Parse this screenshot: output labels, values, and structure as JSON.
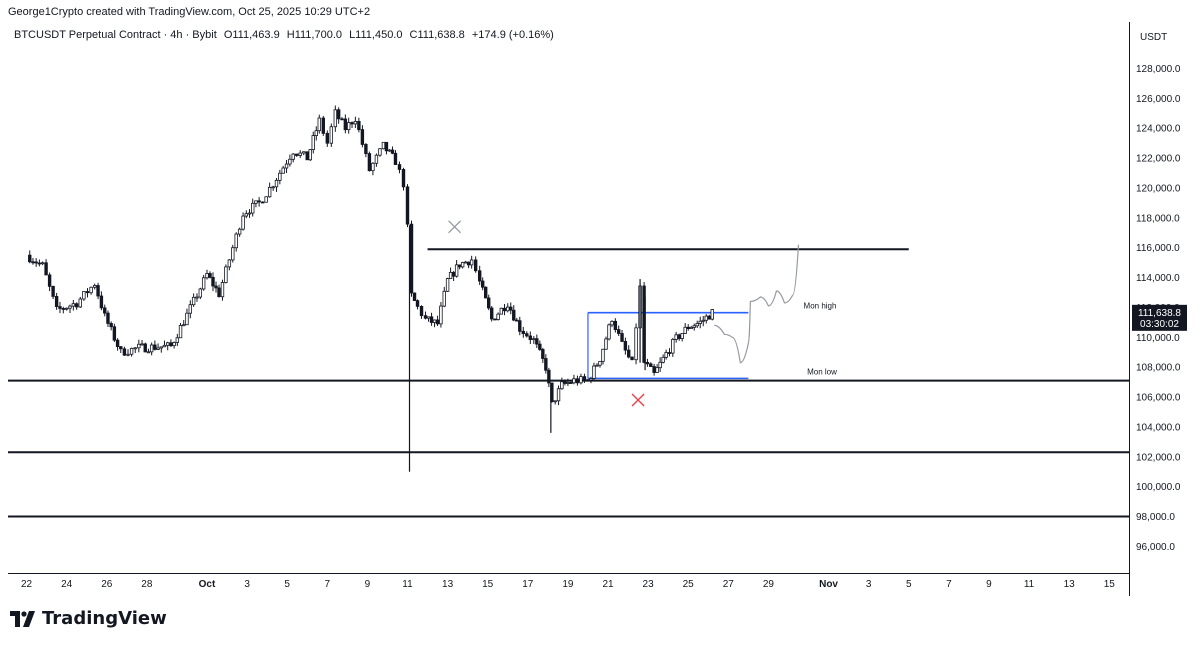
{
  "header": {
    "credit": "George1Crypto created with TradingView.com, Oct 25, 2025 10:29 UTC+2"
  },
  "legend": {
    "symbol": "BTCUSDT Perpetual Contract · 4h · Bybit",
    "open": "O111,463.9",
    "high": "H111,700.0",
    "low": "L111,450.0",
    "close": "C111,638.8",
    "change": "+174.9 (+0.16%)"
  },
  "price_axis": {
    "unit": "USDT",
    "current_price": "111,638.8",
    "countdown": "03:30:02"
  },
  "brand": {
    "logo_text": "TradingView"
  },
  "annotations": {
    "mon_high": "Mon high",
    "mon_low": "Mon low"
  },
  "colors": {
    "candle": "#131722",
    "level_black": "#131722",
    "range_blue": "#2962ff",
    "projection_gray": "#9598a1",
    "x_gray": "#9598a1",
    "x_red": "#f23645"
  },
  "chart_data": {
    "type": "candlestick",
    "symbol": "BTCUSDT Perpetual Contract",
    "interval": "4h",
    "exchange": "Bybit",
    "y_axis": {
      "unit": "USDT",
      "range": [
        94500,
        130500
      ],
      "ticks": [
        "128,000.0",
        "126,000.0",
        "124,000.0",
        "122,000.0",
        "120,000.0",
        "118,000.0",
        "116,000.0",
        "114,000.0",
        "112,000.0",
        "110,000.0",
        "108,000.0",
        "106,000.0",
        "104,000.0",
        "102,000.0",
        "100,000.0",
        "98,000.0",
        "96,000.0"
      ]
    },
    "x_axis": {
      "ticks": [
        "22",
        "24",
        "26",
        "28",
        "Oct",
        "3",
        "5",
        "7",
        "9",
        "11",
        "13",
        "15",
        "17",
        "19",
        "21",
        "23",
        "25",
        "27",
        "29",
        "Nov",
        "3",
        "5",
        "7",
        "9",
        "11",
        "13",
        "15"
      ],
      "bold_ticks": [
        "Oct",
        "Nov"
      ]
    },
    "trend_points": [
      {
        "d": -9.0,
        "p": 115500
      },
      {
        "d": -8.2,
        "p": 114800
      },
      {
        "d": -7.5,
        "p": 111800
      },
      {
        "d": -6.5,
        "p": 112300
      },
      {
        "d": -5.6,
        "p": 113600
      },
      {
        "d": -5.1,
        "p": 111400
      },
      {
        "d": -4.3,
        "p": 109000
      },
      {
        "d": -3.4,
        "p": 109300
      },
      {
        "d": -1.8,
        "p": 109400
      },
      {
        "d": -1.0,
        "p": 111500
      },
      {
        "d": 0.0,
        "p": 114200
      },
      {
        "d": 0.6,
        "p": 112900
      },
      {
        "d": 1.8,
        "p": 118300
      },
      {
        "d": 2.6,
        "p": 119000
      },
      {
        "d": 3.3,
        "p": 120300
      },
      {
        "d": 4.3,
        "p": 122500
      },
      {
        "d": 5.0,
        "p": 122000
      },
      {
        "d": 5.6,
        "p": 124500
      },
      {
        "d": 6.0,
        "p": 123000
      },
      {
        "d": 6.4,
        "p": 125000
      },
      {
        "d": 6.9,
        "p": 124000
      },
      {
        "d": 7.4,
        "p": 124700
      },
      {
        "d": 8.1,
        "p": 121200
      },
      {
        "d": 8.8,
        "p": 122800
      },
      {
        "d": 9.4,
        "p": 121800
      },
      {
        "d": 9.8,
        "p": 120300
      },
      {
        "d": 10.0,
        "p": 117300
      },
      {
        "d": 10.2,
        "p": 112800
      },
      {
        "d": 10.5,
        "p": 112000
      },
      {
        "d": 10.9,
        "p": 111200
      },
      {
        "d": 11.5,
        "p": 110900
      },
      {
        "d": 12.0,
        "p": 113800
      },
      {
        "d": 12.6,
        "p": 114900
      },
      {
        "d": 13.2,
        "p": 115200
      },
      {
        "d": 13.6,
        "p": 113700
      },
      {
        "d": 14.2,
        "p": 111200
      },
      {
        "d": 15.0,
        "p": 112300
      },
      {
        "d": 15.6,
        "p": 110600
      },
      {
        "d": 16.3,
        "p": 109800
      },
      {
        "d": 16.9,
        "p": 108000
      },
      {
        "d": 17.2,
        "p": 105500
      },
      {
        "d": 17.7,
        "p": 106800
      },
      {
        "d": 18.3,
        "p": 107100
      },
      {
        "d": 19.0,
        "p": 107100
      },
      {
        "d": 19.6,
        "p": 108600
      },
      {
        "d": 20.2,
        "p": 111300
      },
      {
        "d": 20.7,
        "p": 109500
      },
      {
        "d": 21.2,
        "p": 108200
      },
      {
        "d": 21.6,
        "p": 113300
      },
      {
        "d": 21.8,
        "p": 108300
      },
      {
        "d": 22.3,
        "p": 107500
      },
      {
        "d": 22.9,
        "p": 108900
      },
      {
        "d": 23.4,
        "p": 109900
      },
      {
        "d": 24.0,
        "p": 110700
      },
      {
        "d": 24.6,
        "p": 111000
      },
      {
        "d": 25.2,
        "p": 111650
      }
    ],
    "levels": [
      {
        "label": "",
        "price": 115900,
        "x_from": "Oct 12",
        "x_to": "Nov 5",
        "color": "black"
      },
      {
        "label": "",
        "price": 107100,
        "x_from": "Sep 21",
        "x_to": "Nov 16",
        "color": "black"
      },
      {
        "label": "",
        "price": 102300,
        "x_from": "Sep 21",
        "x_to": "Nov 16",
        "color": "black"
      },
      {
        "label": "",
        "price": 98000,
        "x_from": "Sep 21",
        "x_to": "Nov 16",
        "color": "black"
      },
      {
        "label": "Mon high",
        "price": 111650,
        "x_from": "Oct 20",
        "x_to": "Oct 28",
        "color": "blue"
      },
      {
        "label": "Mon low",
        "price": 107250,
        "x_from": "Oct 20",
        "x_to": "Oct 28",
        "color": "blue"
      }
    ],
    "projection": [
      {
        "d": 25.3,
        "p": 110800
      },
      {
        "d": 25.8,
        "p": 110200
      },
      {
        "d": 26.2,
        "p": 110000
      },
      {
        "d": 26.6,
        "p": 108300
      },
      {
        "d": 27.0,
        "p": 109600
      },
      {
        "d": 27.1,
        "p": 112400
      },
      {
        "d": 27.6,
        "p": 112700
      },
      {
        "d": 28.0,
        "p": 112100
      },
      {
        "d": 28.4,
        "p": 113100
      },
      {
        "d": 28.8,
        "p": 112300
      },
      {
        "d": 29.2,
        "p": 112800
      },
      {
        "d": 29.5,
        "p": 116200
      }
    ],
    "markers": [
      {
        "type": "x",
        "d": 12.35,
        "p": 117400,
        "color": "gray"
      },
      {
        "type": "x",
        "d": 21.5,
        "p": 105800,
        "color": "red"
      }
    ],
    "last_price": 111638.8
  }
}
